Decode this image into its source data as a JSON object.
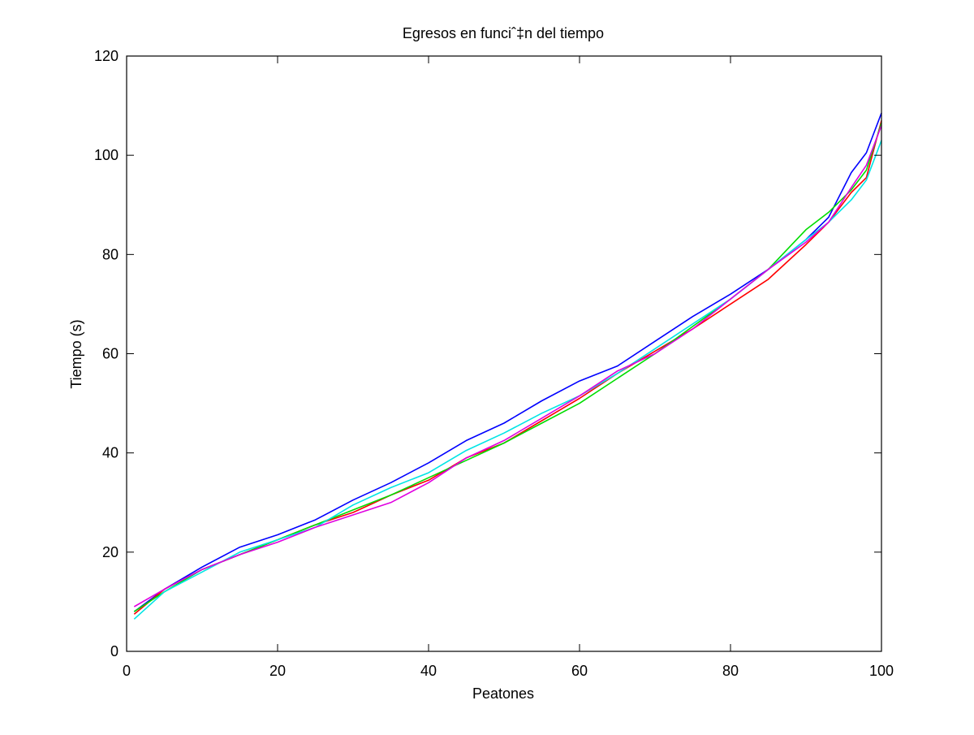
{
  "chart_data": {
    "type": "line",
    "title": "Egresos en funciˆ‡n del tiempo",
    "xlabel": "Peatones",
    "ylabel": "Tiempo (s)",
    "xlim": [
      0,
      100
    ],
    "ylim": [
      0,
      120
    ],
    "xticks": [
      0,
      20,
      40,
      60,
      80,
      100
    ],
    "yticks": [
      0,
      20,
      40,
      60,
      80,
      100,
      120
    ],
    "grid": false,
    "legend": "none",
    "x": [
      1,
      5,
      10,
      15,
      20,
      25,
      30,
      35,
      40,
      45,
      50,
      55,
      60,
      65,
      70,
      75,
      80,
      85,
      90,
      93,
      96,
      98,
      100
    ],
    "series": [
      {
        "color": "#0000ff",
        "values": [
          8.0,
          12.5,
          17.0,
          21.0,
          23.5,
          26.5,
          30.5,
          34.0,
          38.0,
          42.5,
          46.0,
          50.5,
          54.5,
          57.5,
          62.5,
          67.5,
          72.0,
          77.0,
          83.0,
          87.5,
          96.5,
          100.5,
          108.5
        ]
      },
      {
        "color": "#ff0000",
        "values": [
          7.5,
          12.5,
          16.5,
          19.5,
          22.5,
          25.5,
          28.0,
          31.5,
          34.5,
          39.0,
          42.0,
          46.5,
          51.0,
          56.0,
          60.5,
          65.0,
          70.0,
          75.0,
          82.0,
          86.5,
          92.5,
          95.5,
          107.0
        ]
      },
      {
        "color": "#00dd00",
        "values": [
          8.0,
          12.0,
          16.5,
          19.5,
          22.5,
          25.5,
          28.5,
          31.5,
          35.0,
          38.5,
          42.0,
          46.0,
          50.0,
          55.0,
          60.0,
          65.5,
          71.0,
          77.0,
          85.0,
          88.5,
          93.0,
          97.0,
          106.5
        ]
      },
      {
        "color": "#00e5e5",
        "values": [
          6.5,
          12.0,
          16.0,
          20.0,
          22.5,
          25.0,
          29.5,
          33.0,
          36.0,
          40.5,
          44.0,
          48.0,
          51.5,
          56.0,
          61.0,
          66.0,
          71.0,
          77.0,
          83.0,
          86.5,
          91.0,
          95.0,
          103.0
        ]
      },
      {
        "color": "#e000e0",
        "values": [
          9.0,
          12.5,
          16.5,
          19.5,
          22.0,
          25.0,
          27.5,
          30.0,
          34.0,
          39.0,
          42.5,
          47.0,
          51.5,
          56.5,
          60.0,
          65.0,
          71.0,
          77.0,
          82.5,
          86.5,
          93.5,
          98.0,
          106.0
        ]
      }
    ]
  }
}
